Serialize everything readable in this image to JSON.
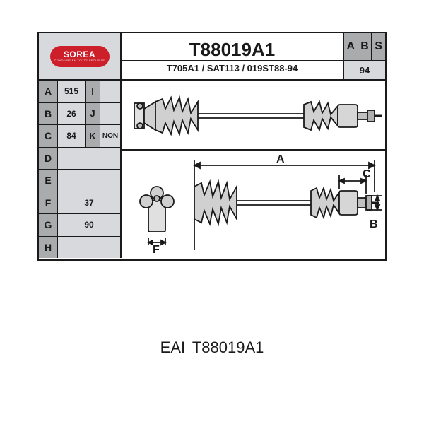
{
  "logo": {
    "brand": "SOREA",
    "tagline": "CONDUIRE EN TOUTE SECURITE"
  },
  "title": {
    "main": "T88019A1",
    "sub": "T705A1 / SAT113 / 019ST88-94"
  },
  "abs": {
    "letters": [
      "A",
      "B",
      "S"
    ],
    "value": "94"
  },
  "table": {
    "rows": [
      {
        "k": "A",
        "v": "515",
        "k2": "I",
        "v2": ""
      },
      {
        "k": "B",
        "v": "26",
        "k2": "J",
        "v2": ""
      },
      {
        "k": "C",
        "v": "84",
        "k2": "K",
        "v2": "NON"
      },
      {
        "k": "D",
        "v": ""
      },
      {
        "k": "E",
        "v": ""
      },
      {
        "k": "F",
        "v": "37"
      },
      {
        "k": "G",
        "v": "90"
      },
      {
        "k": "H",
        "v": ""
      }
    ]
  },
  "dim_labels": {
    "A": "A",
    "B": "B",
    "C": "C",
    "F": "F"
  },
  "caption": {
    "brand": "EAI",
    "part": "T88019A1"
  },
  "colors": {
    "border": "#1a1a1a",
    "gray_dark": "#a9abad",
    "gray_light": "#d7d9dc",
    "red": "#cc1f2a",
    "bg": "#ffffff"
  }
}
